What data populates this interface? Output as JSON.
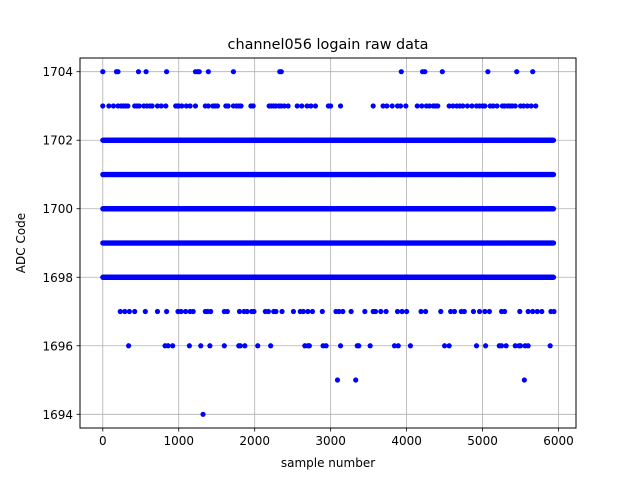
{
  "chart_data": {
    "type": "scatter",
    "title": "channel056 logain raw data",
    "xlabel": "sample number",
    "ylabel": "ADC Code",
    "xlim": [
      -300,
      6230
    ],
    "ylim": [
      1693.6,
      1704.4
    ],
    "xticks": [
      0,
      1000,
      2000,
      3000,
      4000,
      5000,
      6000
    ],
    "yticks": [
      1694,
      1696,
      1698,
      1700,
      1702,
      1704
    ],
    "grid": true,
    "marker_color": "#0000ff",
    "n_samples": 5940,
    "dense_levels": [
      1698,
      1699,
      1700,
      1701,
      1702
    ],
    "sparse_points": {
      "1704": [
        0,
        180,
        200,
        470,
        570,
        840,
        1220,
        1250,
        1270,
        1390,
        1720,
        2330,
        2350,
        3930,
        4210,
        4240,
        4470,
        5070,
        5450,
        5660
      ],
      "1703": [
        0,
        80,
        140,
        200,
        240,
        270,
        300,
        330,
        420,
        450,
        480,
        540,
        580,
        620,
        650,
        720,
        770,
        830,
        960,
        980,
        1000,
        1040,
        1100,
        1150,
        1220,
        1350,
        1390,
        1450,
        1480,
        1510,
        1620,
        1650,
        1720,
        1760,
        1790,
        1820,
        1950,
        1980,
        2190,
        2220,
        2250,
        2280,
        2320,
        2350,
        2390,
        2440,
        2560,
        2620,
        2690,
        2740,
        2800,
        2970,
        3000,
        3130,
        3560,
        3690,
        3740,
        3810,
        3880,
        3920,
        3990,
        4140,
        4200,
        4260,
        4300,
        4350,
        4380,
        4410,
        4560,
        4610,
        4660,
        4700,
        4740,
        4800,
        4860,
        4920,
        4960,
        5000,
        5030,
        5100,
        5140,
        5190,
        5260,
        5290,
        5330,
        5360,
        5390,
        5430,
        5500,
        5540,
        5590,
        5640,
        5700
      ],
      "1697": [
        230,
        290,
        350,
        420,
        560,
        720,
        840,
        990,
        1030,
        1090,
        1150,
        1190,
        1350,
        1380,
        1420,
        1600,
        1640,
        1800,
        1860,
        1900,
        1960,
        1990,
        2140,
        2180,
        2250,
        2280,
        2360,
        2510,
        2600,
        2640,
        2700,
        2760,
        2890,
        3070,
        3110,
        3160,
        3270,
        3450,
        3560,
        3590,
        3660,
        3730,
        3880,
        3940,
        4000,
        4190,
        4250,
        4450,
        4580,
        4630,
        4720,
        4760,
        4880,
        4960,
        5030,
        5090,
        5250,
        5290,
        5490,
        5600,
        5660,
        5720,
        5780,
        5900,
        5940
      ],
      "1696": [
        340,
        820,
        860,
        920,
        1140,
        1290,
        1410,
        1600,
        1790,
        1810,
        1870,
        2040,
        2210,
        2660,
        2700,
        2720,
        2900,
        2940,
        3130,
        3350,
        3370,
        3520,
        3840,
        3890,
        4050,
        4500,
        4560,
        4920,
        5040,
        5220,
        5250,
        5310,
        5430,
        5480,
        5500,
        5560,
        5600,
        5890
      ]
    },
    "outlier_points": {
      "1695": [
        3090,
        3330,
        5550
      ],
      "1694": [
        1320
      ]
    }
  }
}
